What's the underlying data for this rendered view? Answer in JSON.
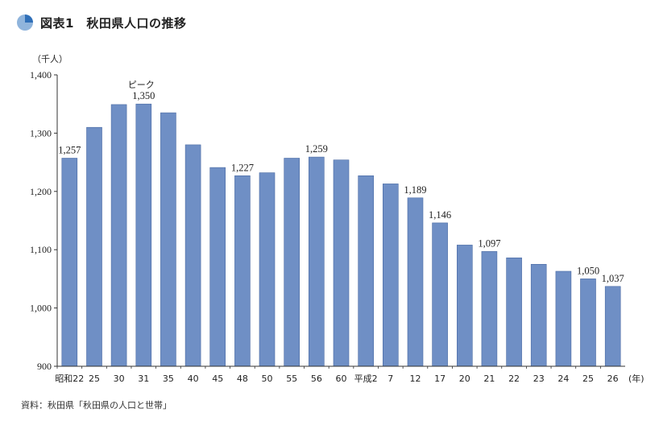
{
  "header": {
    "title": "図表1　秋田県人口の推移",
    "icon": "pie-chart-icon",
    "icon_colors": [
      "#2f6fb8",
      "#8fb4dc"
    ]
  },
  "source_note": "資料：秋田県「秋田県の人口と世帯」",
  "colors": {
    "bar_fill": "#6f8fc5",
    "bar_stroke": "#4a6aa3",
    "axis": "#333333"
  },
  "chart_data": {
    "type": "bar",
    "title": "秋田県人口の推移",
    "y_unit": "（千人）",
    "x_unit": "(年)",
    "ylim": [
      900,
      1400
    ],
    "yticks": [
      900,
      1000,
      1100,
      1200,
      1300,
      1400
    ],
    "ytick_labels": [
      "900",
      "1,000",
      "1,100",
      "1,200",
      "1,300",
      "1,400"
    ],
    "grid": false,
    "categories": [
      "昭和22",
      "25",
      "30",
      "31",
      "35",
      "40",
      "45",
      "48",
      "50",
      "55",
      "56",
      "60",
      "平成2",
      "7",
      "12",
      "17",
      "20",
      "21",
      "22",
      "23",
      "24",
      "25",
      "26"
    ],
    "values": [
      1257,
      1310,
      1349,
      1350,
      1335,
      1280,
      1241,
      1227,
      1232,
      1257,
      1259,
      1254,
      1227,
      1213,
      1189,
      1146,
      1108,
      1097,
      1086,
      1075,
      1063,
      1050,
      1037
    ],
    "data_labels": [
      {
        "index": 0,
        "text": "1,257"
      },
      {
        "index": 3,
        "text": "1,350"
      },
      {
        "index": 7,
        "text": "1,227"
      },
      {
        "index": 10,
        "text": "1,259"
      },
      {
        "index": 14,
        "text": "1,189"
      },
      {
        "index": 15,
        "text": "1,146"
      },
      {
        "index": 17,
        "text": "1,097"
      },
      {
        "index": 21,
        "text": "1,050"
      },
      {
        "index": 22,
        "text": "1,037"
      }
    ],
    "annotation": {
      "index": 3,
      "text": "ピーク"
    }
  }
}
